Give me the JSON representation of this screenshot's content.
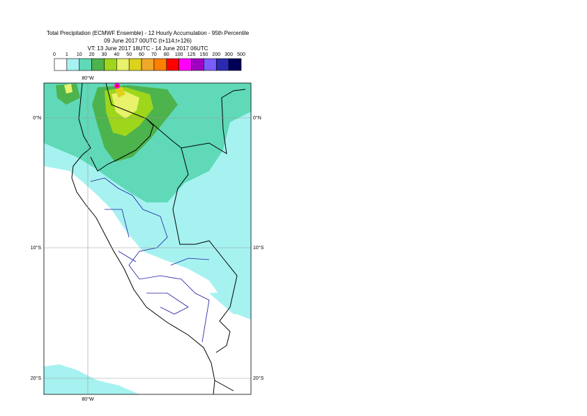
{
  "header": {
    "title_lines": [
      "Total Precipitation (ECMWF Ensemble) - 12 Hourly Accumulation - 95th Percentile",
      "09 June 2017 00UTC (t+114,t+126)",
      "VT: 13 June 2017 18UTC - 14 June 2017 06UTC"
    ]
  },
  "legend": {
    "thresholds": [
      0,
      1,
      10,
      20,
      30,
      40,
      50,
      60,
      70,
      80,
      100,
      125,
      150,
      200,
      300,
      500
    ],
    "colors": [
      "#ffffff",
      "#a6f2f0",
      "#5fd9b8",
      "#4db34d",
      "#9ed61c",
      "#e8f26a",
      "#dcd21c",
      "#f0a82a",
      "#ff7f00",
      "#ff0000",
      "#ff00ff",
      "#a000c0",
      "#7a5cff",
      "#2a2ab0",
      "#000058"
    ]
  },
  "map": {
    "lon_labels": [
      "80°W"
    ],
    "lat_labels": [
      "0°N",
      "10°S",
      "20°S"
    ]
  }
}
